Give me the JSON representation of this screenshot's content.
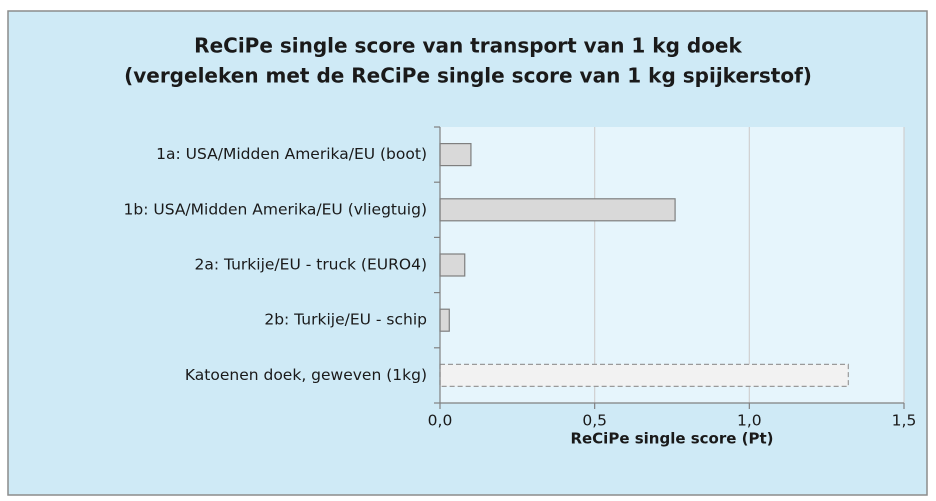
{
  "chart_data": {
    "type": "hbar",
    "title": "ReCiPe single score van transport van 1 kg doek",
    "subtitle": "(vergeleken met de ReCiPe single score van 1 kg spijkerstof)",
    "x_label": "ReCiPe single score (Pt)",
    "categories": [
      "1a: USA/Midden Amerika/EU (boot)",
      "1b: USA/Midden Amerika/EU (vliegtuig)",
      "2a: Turkije/EU - truck (EURO4)",
      "2b: Turkije/EU - schip",
      "Katoenen doek, geweven (1kg)"
    ],
    "values": [
      0.1,
      0.76,
      0.08,
      0.03,
      1.32
    ],
    "colors": [
      "#d9d9d9",
      "#d9d9d9",
      "#d9d9d9",
      "#d9d9d9",
      "#f2f2f2"
    ],
    "bar_styles": [
      "solid",
      "solid",
      "solid",
      "solid",
      "dashed"
    ],
    "xlim": [
      0,
      1.5
    ],
    "xticks": [
      {
        "value": 0,
        "label": "0,0"
      },
      {
        "value": 0.5,
        "label": "0,5"
      },
      {
        "value": 1,
        "label": "1,0"
      },
      {
        "value": 1.5,
        "label": "1,5"
      }
    ],
    "grid": true
  }
}
